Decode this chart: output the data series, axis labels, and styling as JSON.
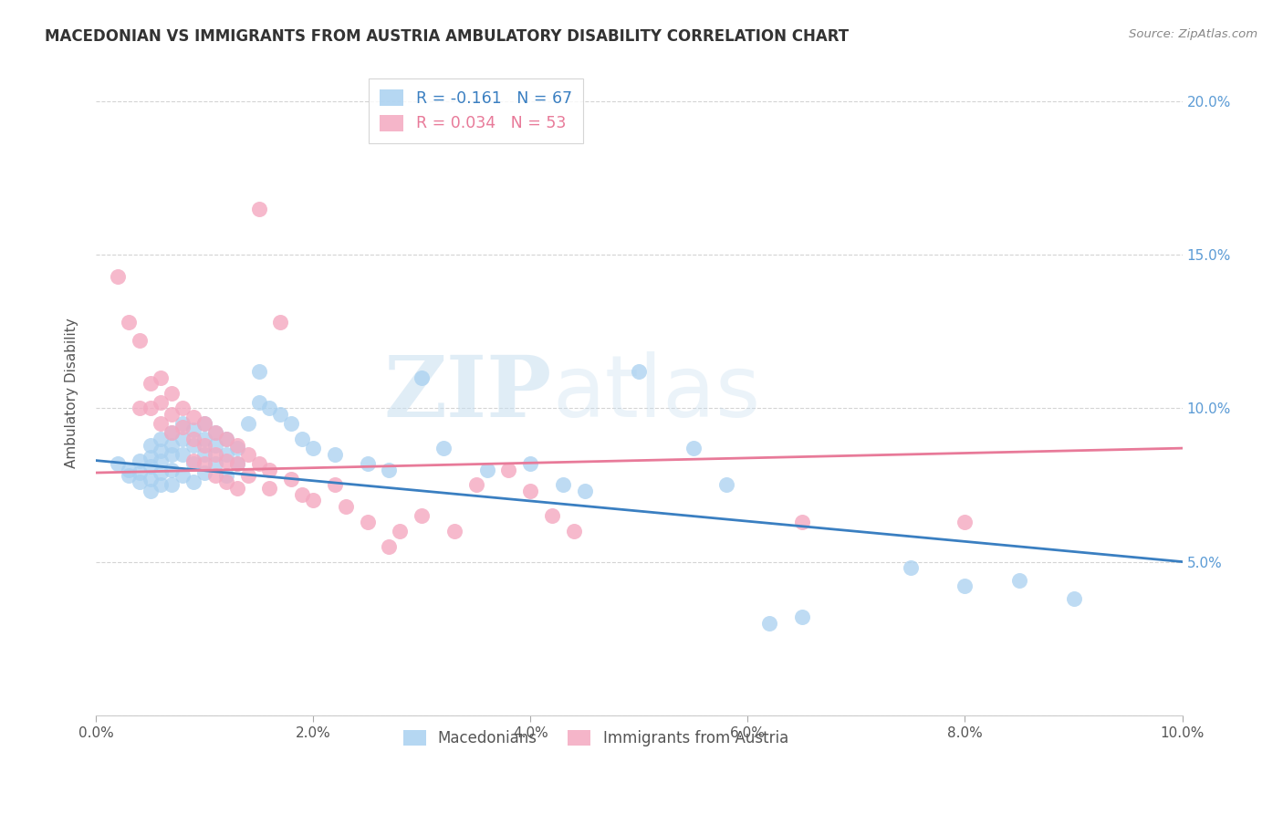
{
  "title": "MACEDONIAN VS IMMIGRANTS FROM AUSTRIA AMBULATORY DISABILITY CORRELATION CHART",
  "source": "Source: ZipAtlas.com",
  "ylabel": "Ambulatory Disability",
  "watermark_zip": "ZIP",
  "watermark_atlas": "atlas",
  "legend_entries": [
    {
      "label": "R = -0.161   N = 67",
      "color": "#a8d0f0"
    },
    {
      "label": "R = 0.034   N = 53",
      "color": "#f4a8c0"
    }
  ],
  "legend_labels_bottom": [
    "Macedonians",
    "Immigrants from Austria"
  ],
  "blue_color": "#a8d0f0",
  "pink_color": "#f4a8c0",
  "blue_line_color": "#3a7fc1",
  "pink_line_color": "#e87a99",
  "background_color": "#ffffff",
  "grid_color": "#d0d0d0",
  "right_axis_color": "#5b9bd5",
  "xmin": 0.0,
  "xmax": 0.1,
  "ymin": 0.0,
  "ymax": 0.21,
  "yticks_right": [
    0.0,
    0.05,
    0.1,
    0.15,
    0.2
  ],
  "ytick_labels_right": [
    "",
    "5.0%",
    "10.0%",
    "15.0%",
    "20.0%"
  ],
  "xticks": [
    0.0,
    0.02,
    0.04,
    0.06,
    0.08,
    0.1
  ],
  "xtick_labels": [
    "0.0%",
    "2.0%",
    "4.0%",
    "6.0%",
    "8.0%",
    "10.0%"
  ],
  "blue_scatter": [
    [
      0.002,
      0.082
    ],
    [
      0.003,
      0.08
    ],
    [
      0.003,
      0.078
    ],
    [
      0.004,
      0.083
    ],
    [
      0.004,
      0.079
    ],
    [
      0.004,
      0.076
    ],
    [
      0.005,
      0.088
    ],
    [
      0.005,
      0.084
    ],
    [
      0.005,
      0.081
    ],
    [
      0.005,
      0.077
    ],
    [
      0.005,
      0.073
    ],
    [
      0.006,
      0.09
    ],
    [
      0.006,
      0.086
    ],
    [
      0.006,
      0.083
    ],
    [
      0.006,
      0.079
    ],
    [
      0.006,
      0.075
    ],
    [
      0.007,
      0.092
    ],
    [
      0.007,
      0.088
    ],
    [
      0.007,
      0.085
    ],
    [
      0.007,
      0.08
    ],
    [
      0.007,
      0.075
    ],
    [
      0.008,
      0.095
    ],
    [
      0.008,
      0.09
    ],
    [
      0.008,
      0.085
    ],
    [
      0.008,
      0.078
    ],
    [
      0.009,
      0.093
    ],
    [
      0.009,
      0.088
    ],
    [
      0.009,
      0.082
    ],
    [
      0.009,
      0.076
    ],
    [
      0.01,
      0.095
    ],
    [
      0.01,
      0.09
    ],
    [
      0.01,
      0.085
    ],
    [
      0.01,
      0.079
    ],
    [
      0.011,
      0.092
    ],
    [
      0.011,
      0.088
    ],
    [
      0.011,
      0.082
    ],
    [
      0.012,
      0.09
    ],
    [
      0.012,
      0.085
    ],
    [
      0.012,
      0.078
    ],
    [
      0.013,
      0.087
    ],
    [
      0.013,
      0.082
    ],
    [
      0.014,
      0.095
    ],
    [
      0.015,
      0.112
    ],
    [
      0.015,
      0.102
    ],
    [
      0.016,
      0.1
    ],
    [
      0.017,
      0.098
    ],
    [
      0.018,
      0.095
    ],
    [
      0.019,
      0.09
    ],
    [
      0.02,
      0.087
    ],
    [
      0.022,
      0.085
    ],
    [
      0.025,
      0.082
    ],
    [
      0.027,
      0.08
    ],
    [
      0.03,
      0.11
    ],
    [
      0.032,
      0.087
    ],
    [
      0.036,
      0.08
    ],
    [
      0.04,
      0.082
    ],
    [
      0.043,
      0.075
    ],
    [
      0.045,
      0.073
    ],
    [
      0.05,
      0.112
    ],
    [
      0.055,
      0.087
    ],
    [
      0.058,
      0.075
    ],
    [
      0.062,
      0.03
    ],
    [
      0.065,
      0.032
    ],
    [
      0.075,
      0.048
    ],
    [
      0.08,
      0.042
    ],
    [
      0.085,
      0.044
    ],
    [
      0.09,
      0.038
    ]
  ],
  "pink_scatter": [
    [
      0.002,
      0.143
    ],
    [
      0.003,
      0.128
    ],
    [
      0.004,
      0.122
    ],
    [
      0.004,
      0.1
    ],
    [
      0.005,
      0.108
    ],
    [
      0.005,
      0.1
    ],
    [
      0.006,
      0.11
    ],
    [
      0.006,
      0.102
    ],
    [
      0.006,
      0.095
    ],
    [
      0.007,
      0.105
    ],
    [
      0.007,
      0.098
    ],
    [
      0.007,
      0.092
    ],
    [
      0.008,
      0.1
    ],
    [
      0.008,
      0.094
    ],
    [
      0.009,
      0.097
    ],
    [
      0.009,
      0.09
    ],
    [
      0.009,
      0.083
    ],
    [
      0.01,
      0.095
    ],
    [
      0.01,
      0.088
    ],
    [
      0.01,
      0.082
    ],
    [
      0.011,
      0.092
    ],
    [
      0.011,
      0.085
    ],
    [
      0.011,
      0.078
    ],
    [
      0.012,
      0.09
    ],
    [
      0.012,
      0.083
    ],
    [
      0.012,
      0.076
    ],
    [
      0.013,
      0.088
    ],
    [
      0.013,
      0.082
    ],
    [
      0.013,
      0.074
    ],
    [
      0.014,
      0.085
    ],
    [
      0.014,
      0.078
    ],
    [
      0.015,
      0.165
    ],
    [
      0.015,
      0.082
    ],
    [
      0.016,
      0.08
    ],
    [
      0.016,
      0.074
    ],
    [
      0.017,
      0.128
    ],
    [
      0.018,
      0.077
    ],
    [
      0.019,
      0.072
    ],
    [
      0.02,
      0.07
    ],
    [
      0.022,
      0.075
    ],
    [
      0.023,
      0.068
    ],
    [
      0.025,
      0.063
    ],
    [
      0.027,
      0.055
    ],
    [
      0.028,
      0.06
    ],
    [
      0.03,
      0.065
    ],
    [
      0.033,
      0.06
    ],
    [
      0.035,
      0.075
    ],
    [
      0.038,
      0.08
    ],
    [
      0.04,
      0.073
    ],
    [
      0.042,
      0.065
    ],
    [
      0.044,
      0.06
    ],
    [
      0.065,
      0.063
    ],
    [
      0.08,
      0.063
    ]
  ],
  "blue_trend_x": [
    0.0,
    0.1
  ],
  "blue_trend_y": [
    0.083,
    0.05
  ],
  "pink_trend_x": [
    0.0,
    0.1
  ],
  "pink_trend_y": [
    0.079,
    0.087
  ]
}
